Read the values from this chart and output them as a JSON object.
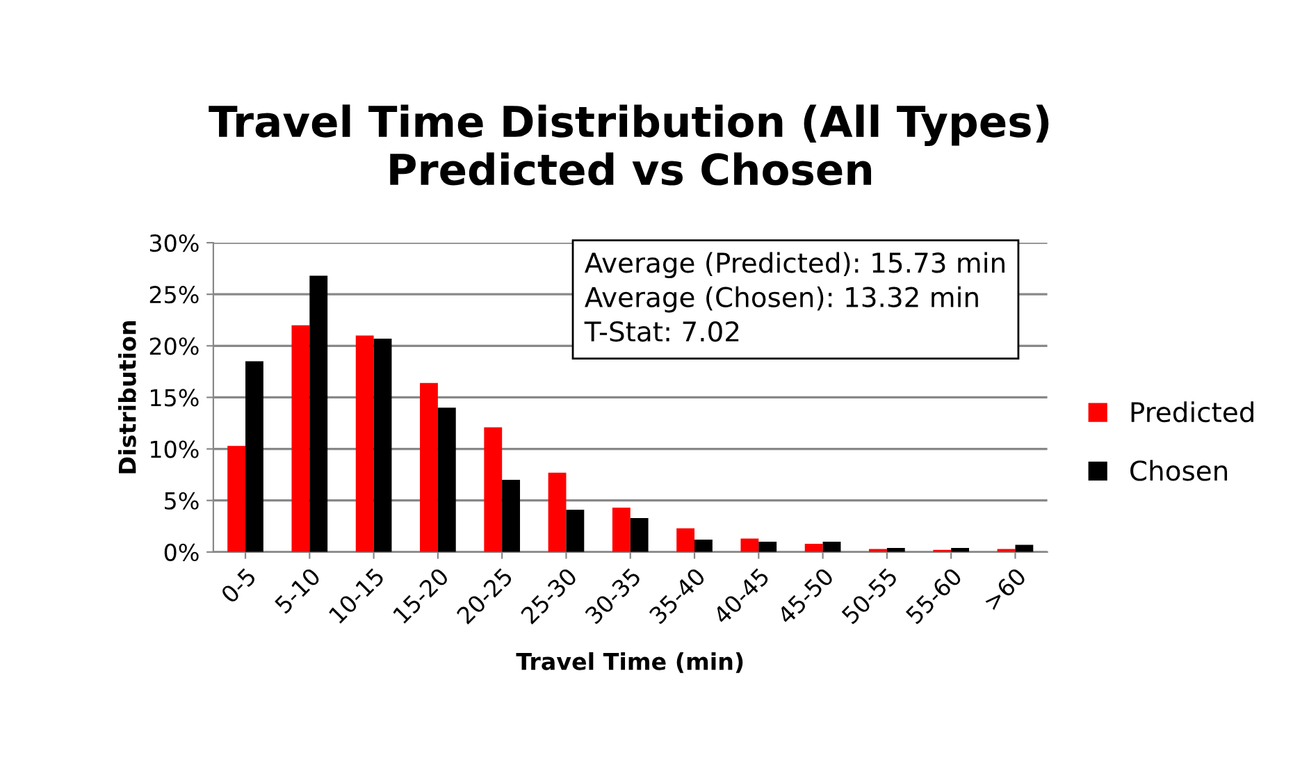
{
  "chart_data": {
    "type": "bar",
    "title": "Travel Time Distribution (All Types)\nPredicted vs Chosen",
    "xlabel": "Travel Time (min)",
    "ylabel": "Distribution",
    "categories": [
      "0-5",
      "5-10",
      "10-15",
      "15-20",
      "20-25",
      "25-30",
      "30-35",
      "35-40",
      "40-45",
      "45-50",
      "50-55",
      "55-60",
      ">60"
    ],
    "series": [
      {
        "name": "Predicted",
        "color": "#ff0000",
        "values": [
          0.103,
          0.22,
          0.21,
          0.164,
          0.121,
          0.077,
          0.043,
          0.023,
          0.013,
          0.008,
          0.003,
          0.002,
          0.003
        ]
      },
      {
        "name": "Chosen",
        "color": "#000000",
        "values": [
          0.185,
          0.268,
          0.207,
          0.14,
          0.07,
          0.041,
          0.033,
          0.012,
          0.01,
          0.01,
          0.004,
          0.004,
          0.007
        ]
      }
    ],
    "ylim": [
      0,
      0.3
    ],
    "yticks": [
      {
        "value": 0,
        "label": "0%"
      },
      {
        "value": 0.05,
        "label": "5%"
      },
      {
        "value": 0.1,
        "label": "10%"
      },
      {
        "value": 0.15,
        "label": "15%"
      },
      {
        "value": 0.2,
        "label": "20%"
      },
      {
        "value": 0.25,
        "label": "25%"
      },
      {
        "value": 0.3,
        "label": "30%"
      }
    ],
    "grid": "y",
    "legend": "right",
    "annotations": [
      "Average (Predicted): 15.73 min\nAverage (Chosen): 13.32 min\nT-Stat: 7.02"
    ]
  }
}
